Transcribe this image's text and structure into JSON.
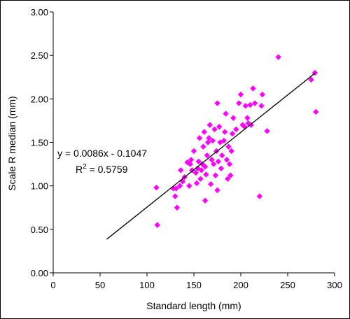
{
  "chart_data": {
    "type": "scatter",
    "title": "",
    "xlabel": "Standard length (mm)",
    "ylabel": "Scale R median (mm)",
    "xlim": [
      0,
      300
    ],
    "ylim": [
      0.0,
      3.0
    ],
    "x_ticks": [
      0,
      50,
      100,
      150,
      200,
      250,
      300
    ],
    "y_ticks": [
      0.0,
      0.5,
      1.0,
      1.5,
      2.0,
      2.5,
      3.0
    ],
    "x_tick_labels": [
      "0",
      "50",
      "100",
      "150",
      "200",
      "250",
      "300"
    ],
    "y_tick_labels": [
      "0.00",
      "0.50",
      "1.00",
      "1.50",
      "2.00",
      "2.50",
      "3.00"
    ],
    "grid": false,
    "marker": "diamond",
    "point_color": "#ff00ff",
    "trendline": {
      "slope": 0.0086,
      "intercept": -0.1047,
      "x_range": [
        57,
        279
      ],
      "color": "#000000",
      "equation_text": "y = 0.0086x - 0.1047",
      "r2_prefix": "R",
      "r2_superscript": "2",
      "r2_suffix": " = 0.5759"
    },
    "points": [
      {
        "x": 110,
        "y": 0.98
      },
      {
        "x": 111,
        "y": 0.55
      },
      {
        "x": 128,
        "y": 0.97
      },
      {
        "x": 130,
        "y": 0.88
      },
      {
        "x": 131,
        "y": 0.97
      },
      {
        "x": 132,
        "y": 0.75
      },
      {
        "x": 135,
        "y": 1.0
      },
      {
        "x": 136,
        "y": 1.18
      },
      {
        "x": 138,
        "y": 1.05
      },
      {
        "x": 140,
        "y": 1.1
      },
      {
        "x": 143,
        "y": 1.27
      },
      {
        "x": 145,
        "y": 1.0
      },
      {
        "x": 146,
        "y": 1.25
      },
      {
        "x": 147,
        "y": 1.3
      },
      {
        "x": 148,
        "y": 1.18
      },
      {
        "x": 150,
        "y": 1.4
      },
      {
        "x": 152,
        "y": 1.15
      },
      {
        "x": 153,
        "y": 1.03
      },
      {
        "x": 154,
        "y": 1.2
      },
      {
        "x": 155,
        "y": 1.28
      },
      {
        "x": 156,
        "y": 1.55
      },
      {
        "x": 157,
        "y": 1.08
      },
      {
        "x": 158,
        "y": 1.18
      },
      {
        "x": 159,
        "y": 1.25
      },
      {
        "x": 160,
        "y": 1.45
      },
      {
        "x": 161,
        "y": 1.62
      },
      {
        "x": 162,
        "y": 1.22
      },
      {
        "x": 162,
        "y": 0.83
      },
      {
        "x": 163,
        "y": 1.13
      },
      {
        "x": 164,
        "y": 1.35
      },
      {
        "x": 165,
        "y": 1.5
      },
      {
        "x": 166,
        "y": 1.55
      },
      {
        "x": 167,
        "y": 1.7
      },
      {
        "x": 168,
        "y": 1.02
      },
      {
        "x": 169,
        "y": 1.3
      },
      {
        "x": 170,
        "y": 1.52
      },
      {
        "x": 171,
        "y": 1.25
      },
      {
        "x": 172,
        "y": 1.65
      },
      {
        "x": 173,
        "y": 1.12
      },
      {
        "x": 174,
        "y": 1.4
      },
      {
        "x": 175,
        "y": 1.95
      },
      {
        "x": 175,
        "y": 0.95
      },
      {
        "x": 176,
        "y": 1.28
      },
      {
        "x": 177,
        "y": 1.68
      },
      {
        "x": 178,
        "y": 1.5
      },
      {
        "x": 179,
        "y": 1.2
      },
      {
        "x": 180,
        "y": 1.35
      },
      {
        "x": 182,
        "y": 1.52
      },
      {
        "x": 183,
        "y": 1.62
      },
      {
        "x": 184,
        "y": 1.83
      },
      {
        "x": 185,
        "y": 1.3
      },
      {
        "x": 186,
        "y": 1.08
      },
      {
        "x": 187,
        "y": 1.45
      },
      {
        "x": 188,
        "y": 1.25
      },
      {
        "x": 189,
        "y": 1.12
      },
      {
        "x": 190,
        "y": 1.4
      },
      {
        "x": 191,
        "y": 1.6
      },
      {
        "x": 192,
        "y": 1.78
      },
      {
        "x": 195,
        "y": 1.65
      },
      {
        "x": 198,
        "y": 1.95
      },
      {
        "x": 200,
        "y": 2.05
      },
      {
        "x": 202,
        "y": 1.7
      },
      {
        "x": 204,
        "y": 1.68
      },
      {
        "x": 205,
        "y": 1.92
      },
      {
        "x": 207,
        "y": 1.78
      },
      {
        "x": 208,
        "y": 1.72
      },
      {
        "x": 210,
        "y": 1.93
      },
      {
        "x": 211,
        "y": 1.7
      },
      {
        "x": 213,
        "y": 2.12
      },
      {
        "x": 215,
        "y": 1.95
      },
      {
        "x": 220,
        "y": 0.88
      },
      {
        "x": 222,
        "y": 1.92
      },
      {
        "x": 223,
        "y": 2.05
      },
      {
        "x": 228,
        "y": 1.63
      },
      {
        "x": 240,
        "y": 2.48
      },
      {
        "x": 275,
        "y": 2.22
      },
      {
        "x": 279,
        "y": 2.3
      },
      {
        "x": 280,
        "y": 1.85
      }
    ]
  }
}
